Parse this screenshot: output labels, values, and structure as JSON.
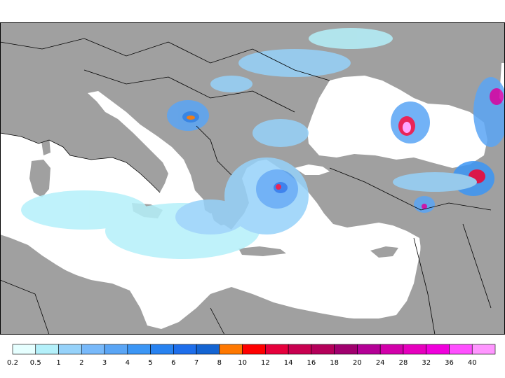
{
  "map": {
    "land_color": "#a0a0a0",
    "sea_color": "#ffffff",
    "border_color": "#000000"
  },
  "legend": {
    "colors": [
      "#e6ffff",
      "#b4f0fa",
      "#96d2fa",
      "#78b9fa",
      "#5aa5f5",
      "#3c96f5",
      "#2882f0",
      "#1e6eeb",
      "#1464d2",
      "#ff7800",
      "#ff0000",
      "#e6003c",
      "#c80050",
      "#b4005a",
      "#a0006e",
      "#b40096",
      "#d200aa",
      "#e600be",
      "#f000dc",
      "#ff50ff",
      "#ff96ff"
    ],
    "labels": [
      "0.2",
      "0.5",
      "1",
      "2",
      "3",
      "4",
      "5",
      "6",
      "7",
      "8",
      "10",
      "12",
      "14",
      "16",
      "18",
      "20",
      "24",
      "28",
      "32",
      "36",
      "40"
    ]
  }
}
